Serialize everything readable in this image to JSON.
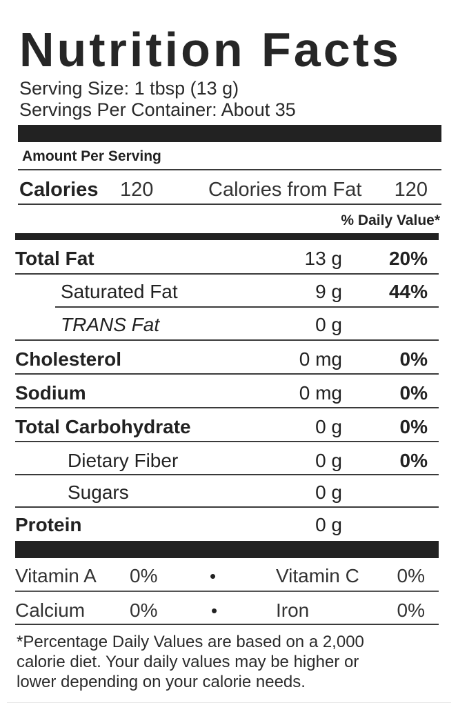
{
  "label": {
    "title": "Nutrition Facts",
    "serving_size": "Serving Size:  1 tbsp (13 g)",
    "servings_per_container": "Servings Per Container:  About 35",
    "amount_per_serving": "Amount Per Serving",
    "calories_label": "Calories",
    "calories_value": "120",
    "calories_from_fat_label": "Calories from Fat",
    "calories_from_fat_value": "120",
    "daily_value_header": "% Daily Value*",
    "nutrients": [
      {
        "name": "Total Fat",
        "amount": "13 g",
        "dv": "20%"
      },
      {
        "name": "Saturated Fat",
        "amount": "9 g",
        "dv": "44%"
      },
      {
        "name": "TRANS Fat",
        "amount": "0 g",
        "dv": ""
      },
      {
        "name": "Cholesterol",
        "amount": "0 mg",
        "dv": "0%"
      },
      {
        "name": "Sodium",
        "amount": "0 mg",
        "dv": "0%"
      },
      {
        "name": "Total Carbohydrate",
        "amount": "0 g",
        "dv": "0%"
      },
      {
        "name": "Dietary Fiber",
        "amount": "0 g",
        "dv": "0%"
      },
      {
        "name": "Sugars",
        "amount": "0 g",
        "dv": ""
      },
      {
        "name": "Protein",
        "amount": "0 g",
        "dv": ""
      }
    ],
    "vitamins": [
      {
        "left_name": "Vitamin A",
        "left_value": "0%",
        "right_name": "Vitamin C",
        "right_value": "0%"
      },
      {
        "left_name": "Calcium",
        "left_value": "0%",
        "right_name": "Iron",
        "right_value": "0%"
      }
    ],
    "bullet": "•",
    "footnote": [
      "*Percentage Daily Values are based on a 2,000",
      "calorie diet. Your daily values may be higher or",
      "lower depending on your calorie needs."
    ]
  }
}
